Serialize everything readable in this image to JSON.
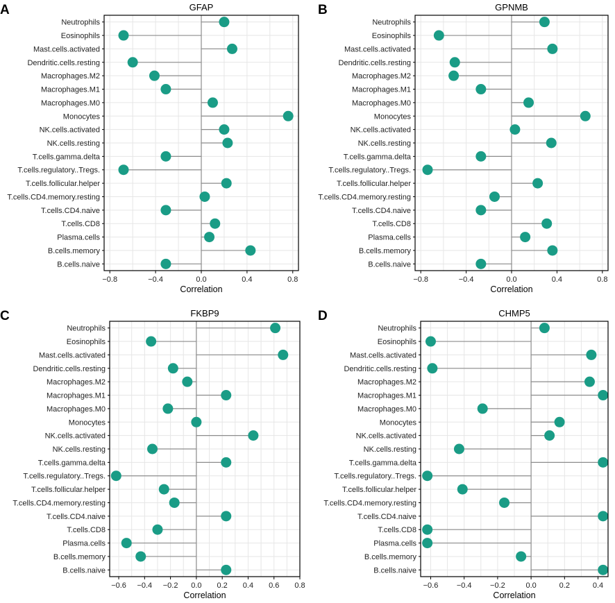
{
  "chart_data": [
    {
      "type": "lollipop",
      "panel": "A",
      "title": "GFAP",
      "xlabel": "Correlation",
      "xlim": [
        -0.85,
        0.85
      ],
      "xticks": [
        -0.8,
        -0.4,
        0.0,
        0.4,
        0.8
      ],
      "xtick_labels": [
        "−0.8",
        "−0.4",
        "0.0",
        "0.4",
        "0.8"
      ],
      "point_color": "#1a9c86",
      "categories": [
        "Neutrophils",
        "Eosinophils",
        "Mast.cells.activated",
        "Dendritic.cells.resting",
        "Macrophages.M2",
        "Macrophages.M1",
        "Macrophages.M0",
        "Monocytes",
        "NK.cells.activated",
        "NK.cells.resting",
        "T.cells.gamma.delta",
        "T.cells.regulatory..Tregs.",
        "T.cells.follicular.helper",
        "T.cells.CD4.memory.resting",
        "T.cells.CD4.naive",
        "T.cells.CD8",
        "Plasma.cells",
        "B.cells.memory",
        "B.cells.naive"
      ],
      "values": [
        0.2,
        -0.68,
        0.27,
        -0.6,
        -0.41,
        -0.31,
        0.1,
        0.76,
        0.2,
        0.23,
        -0.31,
        -0.68,
        0.22,
        0.03,
        -0.31,
        0.12,
        0.07,
        0.43,
        -0.31
      ]
    },
    {
      "type": "lollipop",
      "panel": "B",
      "title": "GPNMB",
      "xlabel": "Correlation",
      "xlim": [
        -0.85,
        0.85
      ],
      "xticks": [
        -0.8,
        -0.4,
        0.0,
        0.4,
        0.8
      ],
      "xtick_labels": [
        "−0.8",
        "−0.4",
        "0.0",
        "0.4",
        "0.8"
      ],
      "point_color": "#1a9c86",
      "categories": [
        "Neutrophils",
        "Eosinophils",
        "Mast.cells.activated",
        "Dendritic.cells.resting",
        "Macrophages.M2",
        "Macrophages.M1",
        "Macrophages.M0",
        "Monocytes",
        "NK.cells.activated",
        "NK.cells.resting",
        "T.cells.gamma.delta",
        "T.cells.regulatory..Tregs.",
        "T.cells.follicular.helper",
        "T.cells.CD4.memory.resting",
        "T.cells.CD4.naive",
        "T.cells.CD8",
        "Plasma.cells",
        "B.cells.memory",
        "B.cells.naive"
      ],
      "values": [
        0.29,
        -0.64,
        0.36,
        -0.5,
        -0.51,
        -0.27,
        0.15,
        0.65,
        0.03,
        0.35,
        -0.27,
        -0.74,
        0.23,
        -0.15,
        -0.27,
        0.31,
        0.12,
        0.36,
        -0.27
      ]
    },
    {
      "type": "lollipop",
      "panel": "C",
      "title": "FKBP9",
      "xlabel": "Correlation",
      "xlim": [
        -0.67,
        0.8
      ],
      "xticks": [
        -0.6,
        -0.4,
        -0.2,
        0.0,
        0.2,
        0.4,
        0.6,
        0.8
      ],
      "xtick_labels": [
        "−0.6",
        "−0.4",
        "−0.2",
        "0.0",
        "0.2",
        "0.4",
        "0.6",
        "0.8"
      ],
      "point_color": "#1a9c86",
      "categories": [
        "Neutrophils",
        "Eosinophils",
        "Mast.cells.activated",
        "Dendritic.cells.resting",
        "Macrophages.M2",
        "Macrophages.M1",
        "Macrophages.M0",
        "Monocytes",
        "NK.cells.activated",
        "NK.cells.resting",
        "T.cells.gamma.delta",
        "T.cells.regulatory..Tregs.",
        "T.cells.follicular.helper",
        "T.cells.CD4.memory.resting",
        "T.cells.CD4.naive",
        "T.cells.CD8",
        "Plasma.cells",
        "B.cells.memory",
        "B.cells.naive"
      ],
      "values": [
        0.61,
        -0.35,
        0.67,
        -0.18,
        -0.07,
        0.23,
        -0.22,
        0.0,
        0.44,
        -0.34,
        0.23,
        -0.62,
        -0.25,
        -0.17,
        0.23,
        -0.3,
        -0.54,
        -0.43,
        0.23
      ]
    },
    {
      "type": "lollipop",
      "panel": "D",
      "title": "CHMP5",
      "xlabel": "Correlation",
      "xlim": [
        -0.66,
        0.46
      ],
      "xticks": [
        -0.6,
        -0.4,
        -0.2,
        0.0,
        0.2,
        0.4
      ],
      "xtick_labels": [
        "−0.6",
        "−0.4",
        "−0.2",
        "0.0",
        "0.2",
        "0.4"
      ],
      "point_color": "#1a9c86",
      "categories": [
        "Neutrophils",
        "Eosinophils",
        "Mast.cells.activated",
        "Dendritic.cells.resting",
        "Macrophages.M2",
        "Macrophages.M1",
        "Macrophages.M0",
        "Monocytes",
        "NK.cells.activated",
        "NK.cells.resting",
        "T.cells.gamma.delta",
        "T.cells.regulatory..Tregs.",
        "T.cells.follicular.helper",
        "T.cells.CD4.memory.resting",
        "T.cells.CD4.naive",
        "T.cells.CD8",
        "Plasma.cells",
        "B.cells.memory",
        "B.cells.naive"
      ],
      "values": [
        0.08,
        -0.6,
        0.36,
        -0.59,
        0.35,
        0.43,
        -0.29,
        0.17,
        0.11,
        -0.43,
        0.43,
        -0.62,
        -0.41,
        -0.16,
        0.43,
        -0.62,
        -0.62,
        -0.06,
        0.43
      ]
    }
  ]
}
